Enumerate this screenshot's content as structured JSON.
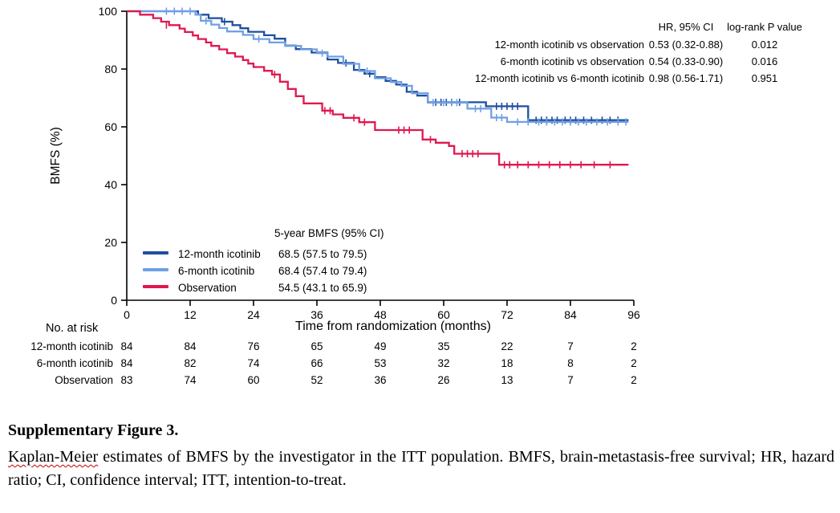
{
  "chart_data": {
    "type": "line",
    "subtype": "kaplan-meier-step",
    "title": "",
    "xlabel": "Time from randomization (months)",
    "ylabel": "BMFS (%)",
    "xlim": [
      0,
      96
    ],
    "ylim": [
      0,
      100
    ],
    "x_ticks": [
      0,
      12,
      24,
      36,
      48,
      60,
      72,
      84,
      96
    ],
    "y_ticks": [
      0,
      20,
      40,
      60,
      80,
      100
    ],
    "grid": false,
    "legend_position": "lower-left",
    "series": [
      {
        "name": "12-month icotinib",
        "key": "12-month-icotinib",
        "color": "#1F4E9E",
        "five_year_bmfs": "68.5 (57.5 to 79.5)",
        "start": [
          0,
          100
        ],
        "end": 95,
        "steps": [
          [
            13.5,
            98.8
          ],
          [
            15.5,
            97.6
          ],
          [
            18,
            96.4
          ],
          [
            20,
            95.2
          ],
          [
            21.5,
            94.1
          ],
          [
            23,
            92.9
          ],
          [
            26,
            91.7
          ],
          [
            28,
            90.5
          ],
          [
            30,
            88.1
          ],
          [
            32,
            86.9
          ],
          [
            35,
            85.7
          ],
          [
            38,
            83.3
          ],
          [
            40,
            82.1
          ],
          [
            43,
            79.7
          ],
          [
            45,
            78.4
          ],
          [
            47,
            77.2
          ],
          [
            49,
            75.9
          ],
          [
            51,
            74.6
          ],
          [
            53,
            72.1
          ],
          [
            55,
            70.8
          ],
          [
            57,
            68.5
          ],
          [
            68,
            67.1
          ],
          [
            76,
            62.3
          ]
        ],
        "censors": [
          [
            18.5,
            96.4
          ],
          [
            41.5,
            82.1
          ],
          [
            46,
            78.4
          ],
          [
            58.5,
            68.5
          ],
          [
            59.5,
            68.5
          ],
          [
            60.5,
            68.5
          ],
          [
            61.5,
            68.5
          ],
          [
            63,
            68.5
          ],
          [
            70,
            67.1
          ],
          [
            71,
            67.1
          ],
          [
            72,
            67.1
          ],
          [
            73,
            67.1
          ],
          [
            74,
            67.1
          ],
          [
            77.5,
            62.3
          ],
          [
            78.5,
            62.3
          ],
          [
            79.5,
            62.3
          ],
          [
            80.5,
            62.3
          ],
          [
            81.5,
            62.3
          ],
          [
            83,
            62.3
          ],
          [
            84,
            62.3
          ],
          [
            85,
            62.3
          ],
          [
            86.5,
            62.3
          ],
          [
            88,
            62.3
          ],
          [
            90,
            62.3
          ],
          [
            91.5,
            62.3
          ],
          [
            93,
            62.3
          ]
        ]
      },
      {
        "name": "6-month icotinib",
        "key": "6-month-icotinib",
        "color": "#6FA0E4",
        "five_year_bmfs": "68.4 (57.4 to 79.4)",
        "start": [
          0,
          100
        ],
        "end": 95,
        "steps": [
          [
            13,
            98.8
          ],
          [
            14,
            96.7
          ],
          [
            16,
            95.4
          ],
          [
            17.5,
            94.2
          ],
          [
            19,
            93
          ],
          [
            22,
            91.8
          ],
          [
            24,
            90.4
          ],
          [
            27,
            89.2
          ],
          [
            30,
            88
          ],
          [
            33,
            86.8
          ],
          [
            36,
            85.5
          ],
          [
            38,
            84.3
          ],
          [
            41,
            81.8
          ],
          [
            44,
            79.3
          ],
          [
            47,
            76.8
          ],
          [
            50,
            75.5
          ],
          [
            52,
            74.2
          ],
          [
            54,
            71.6
          ],
          [
            57,
            68.4
          ],
          [
            64.5,
            66.3
          ],
          [
            69,
            63.2
          ],
          [
            72,
            61.7
          ]
        ],
        "censors": [
          [
            7.5,
            100
          ],
          [
            9,
            100
          ],
          [
            10.5,
            100
          ],
          [
            12,
            100
          ],
          [
            15,
            96.7
          ],
          [
            25,
            90.4
          ],
          [
            37,
            85.5
          ],
          [
            45.5,
            79.3
          ],
          [
            58,
            68.4
          ],
          [
            60,
            68.4
          ],
          [
            61.5,
            68.4
          ],
          [
            62.5,
            68.4
          ],
          [
            66,
            66.3
          ],
          [
            67,
            66.3
          ],
          [
            70,
            63.2
          ],
          [
            71,
            63.2
          ],
          [
            74,
            61.7
          ],
          [
            76,
            61.7
          ],
          [
            78,
            61.7
          ],
          [
            79.5,
            61.7
          ],
          [
            81,
            61.7
          ],
          [
            82.5,
            61.7
          ],
          [
            84,
            61.7
          ],
          [
            85.5,
            61.7
          ],
          [
            87,
            61.7
          ],
          [
            89,
            61.7
          ],
          [
            91,
            61.7
          ],
          [
            93,
            61.7
          ],
          [
            94.5,
            61.7
          ]
        ]
      },
      {
        "name": "Observation",
        "key": "observation",
        "color": "#E0184F",
        "five_year_bmfs": "54.5 (43.1 to 65.9)",
        "start": [
          0,
          100
        ],
        "end": 95,
        "steps": [
          [
            2.5,
            98.8
          ],
          [
            5,
            97.6
          ],
          [
            6.5,
            96.4
          ],
          [
            8,
            95.2
          ],
          [
            10,
            94
          ],
          [
            11,
            92.8
          ],
          [
            12.5,
            91.6
          ],
          [
            13.5,
            90.4
          ],
          [
            15,
            89.2
          ],
          [
            16,
            88
          ],
          [
            17.5,
            86.8
          ],
          [
            19,
            85.5
          ],
          [
            20.5,
            84.3
          ],
          [
            22,
            83.1
          ],
          [
            23,
            81.9
          ],
          [
            24,
            80.7
          ],
          [
            26,
            79.4
          ],
          [
            27.5,
            78.1
          ],
          [
            29,
            75.6
          ],
          [
            30.5,
            73.1
          ],
          [
            32,
            70.6
          ],
          [
            33.5,
            68.1
          ],
          [
            37,
            65.6
          ],
          [
            39,
            64.3
          ],
          [
            41,
            63.1
          ],
          [
            44,
            61.6
          ],
          [
            47,
            58.9
          ],
          [
            56,
            55.6
          ],
          [
            58.5,
            54.5
          ],
          [
            61,
            53.4
          ],
          [
            62,
            50.7
          ],
          [
            70.5,
            46.9
          ]
        ],
        "censors": [
          [
            7.5,
            95.2
          ],
          [
            28,
            78.1
          ],
          [
            37.5,
            65.6
          ],
          [
            38.5,
            65.6
          ],
          [
            43,
            63.1
          ],
          [
            45,
            61.6
          ],
          [
            51.5,
            58.9
          ],
          [
            52.5,
            58.9
          ],
          [
            53.5,
            58.9
          ],
          [
            57.5,
            55.6
          ],
          [
            63.5,
            50.7
          ],
          [
            64.5,
            50.7
          ],
          [
            65.5,
            50.7
          ],
          [
            66.5,
            50.7
          ],
          [
            71.5,
            46.9
          ],
          [
            72.5,
            46.9
          ],
          [
            74,
            46.9
          ],
          [
            76,
            46.9
          ],
          [
            78,
            46.9
          ],
          [
            80,
            46.9
          ],
          [
            82,
            46.9
          ],
          [
            84,
            46.9
          ],
          [
            86,
            46.9
          ],
          [
            88.5,
            46.9
          ],
          [
            91.5,
            46.9
          ]
        ]
      }
    ]
  },
  "stats_table": {
    "col_headers": [
      "HR, 95% CI",
      "log-rank P value"
    ],
    "rows": [
      {
        "label": "12-month icotinib vs observation",
        "hr": "0.53 (0.32-0.88)",
        "p": "0.012"
      },
      {
        "label": "6-month icotinib vs observation",
        "hr": "0.54 (0.33-0.90)",
        "p": "0.016"
      },
      {
        "label": "12-month icotinib vs 6-month icotinib",
        "hr": "0.98 (0.56-1.71)",
        "p": "0.951"
      }
    ]
  },
  "legend": {
    "header": "5-year BMFS (95% CI)",
    "items": [
      {
        "label": "12-month icotinib",
        "value": "68.5 (57.5 to 79.5)",
        "color": "#1F4E9E"
      },
      {
        "label": "6-month icotinib",
        "value": "68.4 (57.4 to 79.4)",
        "color": "#6FA0E4"
      },
      {
        "label": "Observation",
        "value": "54.5 (43.1 to 65.9)",
        "color": "#E0184F"
      }
    ]
  },
  "risk_table": {
    "title": "No. at risk",
    "rows": [
      {
        "label": "12-month icotinib",
        "counts": [
          84,
          84,
          76,
          65,
          49,
          35,
          22,
          7,
          2
        ]
      },
      {
        "label": "6-month icotinib",
        "counts": [
          84,
          82,
          74,
          66,
          53,
          32,
          18,
          8,
          2
        ]
      },
      {
        "label": "Observation",
        "counts": [
          83,
          74,
          60,
          52,
          36,
          26,
          13,
          7,
          2
        ]
      }
    ]
  },
  "caption": {
    "title": "Supplementary Figure 3.",
    "underlined_term": "Kaplan-Meier",
    "body": " estimates of BMFS by the investigator in the ITT population. BMFS, brain-metastasis-free survival; HR, hazard ratio; CI, confidence interval; ITT, intention-to-treat."
  }
}
